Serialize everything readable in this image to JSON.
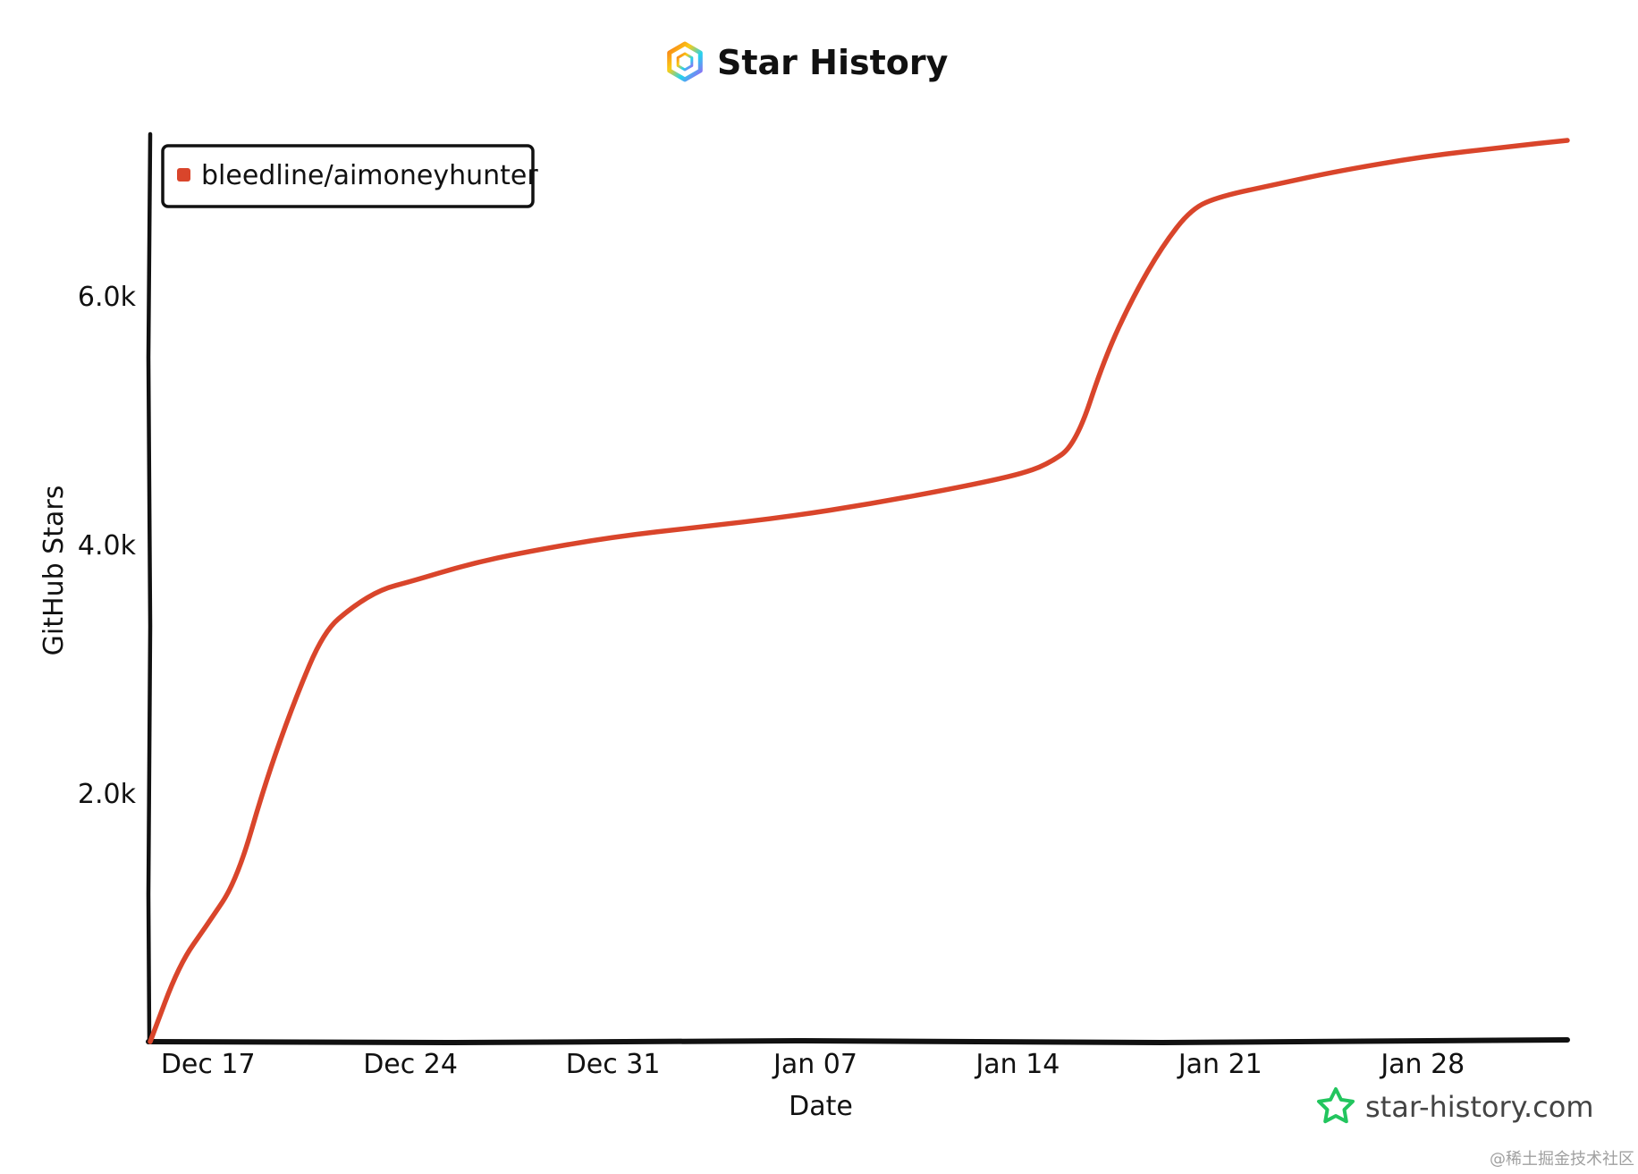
{
  "chart_data": {
    "type": "line",
    "title": "Star History",
    "xlabel": "Date",
    "ylabel": "GitHub Stars",
    "x_tick_labels": [
      "Dec 17",
      "Dec 24",
      "Dec 31",
      "Jan 07",
      "Jan 14",
      "Jan 21",
      "Jan 28"
    ],
    "x_tick_dates": [
      "2023-12-17",
      "2023-12-24",
      "2023-12-31",
      "2024-01-07",
      "2024-01-14",
      "2024-01-21",
      "2024-01-28"
    ],
    "y_tick_labels": [
      "2.0k",
      "4.0k",
      "6.0k"
    ],
    "y_tick_values": [
      2000,
      4000,
      6000
    ],
    "xlim": [
      "2023-12-15",
      "2024-02-02"
    ],
    "ylim": [
      0,
      7300
    ],
    "grid": false,
    "legend_position": "top-left",
    "series": [
      {
        "name": "bleedline/aimoneyhunter",
        "color": "#d9452b",
        "points": [
          {
            "x": "2023-12-15",
            "y": 0
          },
          {
            "x": "2023-12-16",
            "y": 620
          },
          {
            "x": "2023-12-17",
            "y": 950
          },
          {
            "x": "2023-12-18",
            "y": 1300
          },
          {
            "x": "2023-12-19",
            "y": 2100
          },
          {
            "x": "2023-12-20",
            "y": 2750
          },
          {
            "x": "2023-12-21",
            "y": 3300
          },
          {
            "x": "2023-12-22",
            "y": 3500
          },
          {
            "x": "2023-12-23",
            "y": 3640
          },
          {
            "x": "2023-12-24",
            "y": 3700
          },
          {
            "x": "2023-12-26",
            "y": 3840
          },
          {
            "x": "2023-12-28",
            "y": 3940
          },
          {
            "x": "2023-12-31",
            "y": 4060
          },
          {
            "x": "2024-01-03",
            "y": 4140
          },
          {
            "x": "2024-01-06",
            "y": 4220
          },
          {
            "x": "2024-01-09",
            "y": 4330
          },
          {
            "x": "2024-01-12",
            "y": 4460
          },
          {
            "x": "2024-01-14",
            "y": 4560
          },
          {
            "x": "2024-01-15",
            "y": 4640
          },
          {
            "x": "2024-01-16",
            "y": 4800
          },
          {
            "x": "2024-01-17",
            "y": 5500
          },
          {
            "x": "2024-01-18",
            "y": 6000
          },
          {
            "x": "2024-01-19",
            "y": 6400
          },
          {
            "x": "2024-01-20",
            "y": 6700
          },
          {
            "x": "2024-01-21",
            "y": 6800
          },
          {
            "x": "2024-01-23",
            "y": 6900
          },
          {
            "x": "2024-01-25",
            "y": 7000
          },
          {
            "x": "2024-01-28",
            "y": 7120
          },
          {
            "x": "2024-01-31",
            "y": 7200
          },
          {
            "x": "2024-02-02",
            "y": 7250
          }
        ]
      }
    ]
  },
  "watermark": {
    "text": "star-history.com",
    "icon": "star-outline-icon",
    "color": "#22c55e"
  },
  "logo": {
    "icon": "hexagon-logo-icon"
  },
  "credit": {
    "text": "@稀土掘金技术社区"
  }
}
